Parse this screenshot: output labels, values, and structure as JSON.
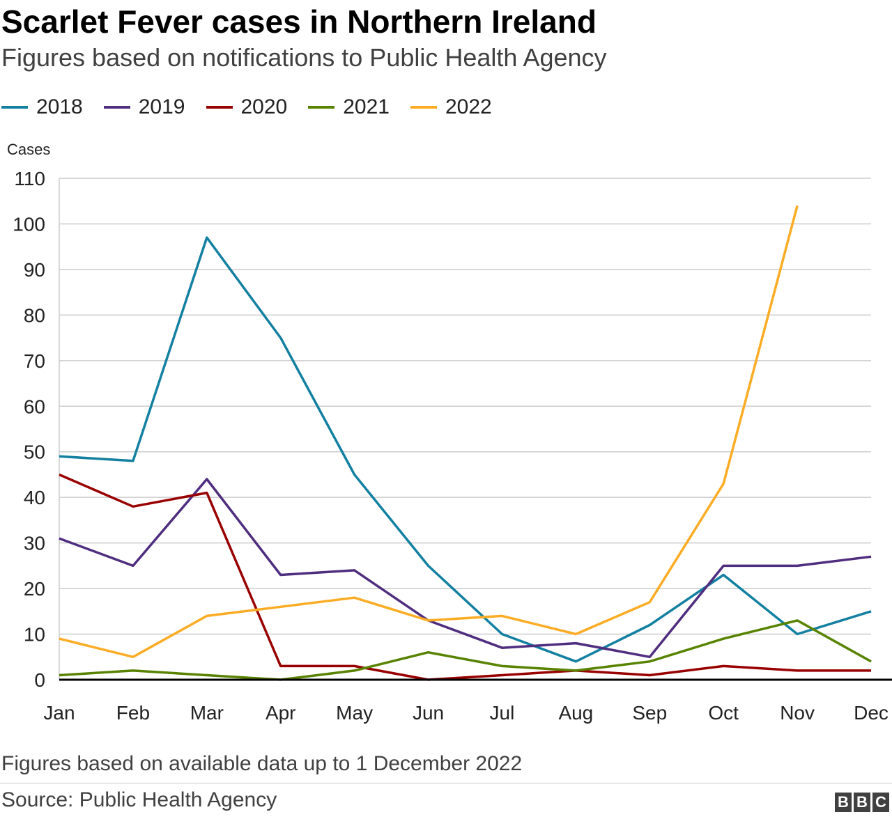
{
  "header": {
    "title": "Scarlet Fever cases in Northern Ireland",
    "subtitle": "Figures based on notifications to Public Health Agency"
  },
  "footer": {
    "note": "Figures based on available data up to 1 December 2022",
    "source": "Source: Public Health Agency",
    "logo_letters": [
      "B",
      "B",
      "C"
    ]
  },
  "chart_data": {
    "type": "line",
    "title": "Scarlet Fever cases in Northern Ireland",
    "xlabel": "",
    "ylabel": "Cases",
    "ylim": [
      0,
      110
    ],
    "yticks": [
      0,
      10,
      20,
      30,
      40,
      50,
      60,
      70,
      80,
      90,
      100,
      110
    ],
    "grid": true,
    "legend": "top-left",
    "categories": [
      "Jan",
      "Feb",
      "Mar",
      "Apr",
      "May",
      "Jun",
      "Jul",
      "Aug",
      "Sep",
      "Oct",
      "Nov",
      "Dec"
    ],
    "series": [
      {
        "name": "2018",
        "color": "#1380a1",
        "values": [
          49,
          48,
          97,
          75,
          45,
          25,
          10,
          4,
          12,
          23,
          10,
          15
        ]
      },
      {
        "name": "2019",
        "color": "#4f2d7f",
        "values": [
          31,
          25,
          44,
          23,
          24,
          13,
          7,
          8,
          5,
          25,
          25,
          27
        ]
      },
      {
        "name": "2020",
        "color": "#990000",
        "values": [
          45,
          38,
          41,
          3,
          3,
          0,
          1,
          2,
          1,
          3,
          2,
          2
        ]
      },
      {
        "name": "2021",
        "color": "#588300",
        "values": [
          1,
          2,
          1,
          0,
          2,
          6,
          3,
          2,
          4,
          9,
          13,
          4
        ]
      },
      {
        "name": "2022",
        "color": "#fbac24",
        "values": [
          9,
          5,
          14,
          16,
          18,
          13,
          14,
          10,
          17,
          43,
          104,
          null
        ]
      }
    ]
  }
}
